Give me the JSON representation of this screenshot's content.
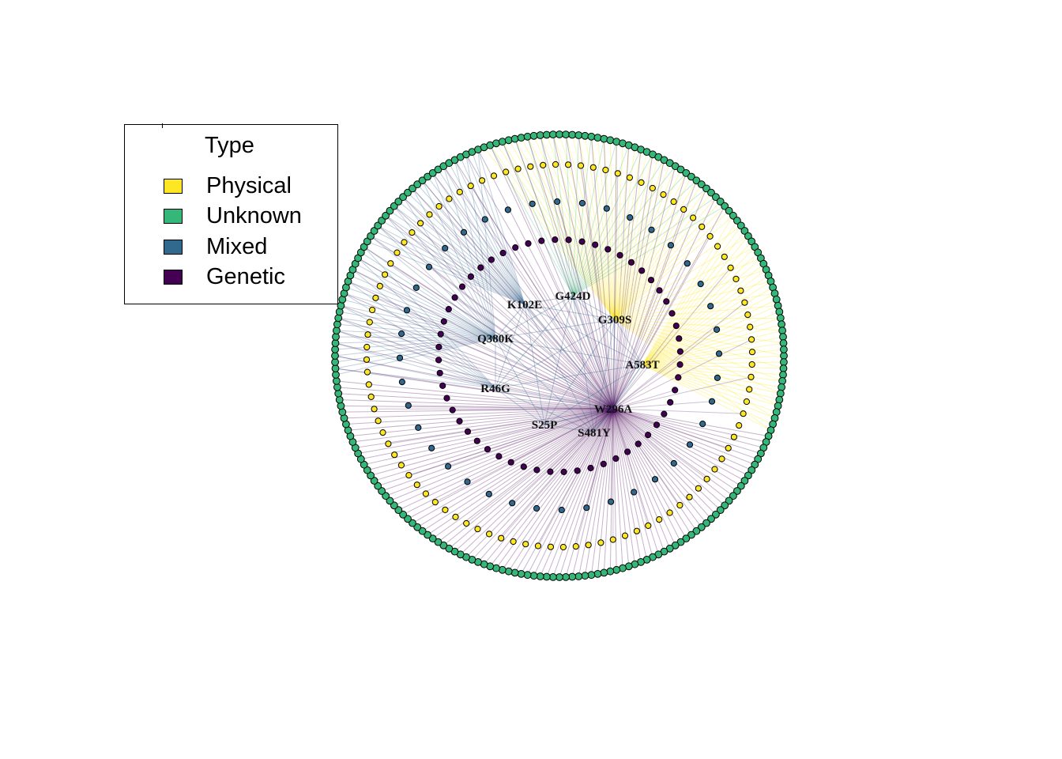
{
  "legend": {
    "title": "Type",
    "items": [
      {
        "label": "Physical",
        "color": "#FDE725"
      },
      {
        "label": "Unknown",
        "color": "#35B779"
      },
      {
        "label": "Mixed",
        "color": "#31688E"
      },
      {
        "label": "Genetic",
        "color": "#440154"
      }
    ]
  },
  "hubs": [
    {
      "label": "W296A",
      "type": "Genetic"
    },
    {
      "label": "S481Y",
      "type": "Genetic"
    },
    {
      "label": "S25P",
      "type": "Genetic"
    },
    {
      "label": "R46G",
      "type": "Mixed"
    },
    {
      "label": "Q380K",
      "type": "Mixed"
    },
    {
      "label": "K102E",
      "type": "Mixed"
    },
    {
      "label": "G424D",
      "type": "Unknown"
    },
    {
      "label": "G309S",
      "type": "Physical"
    },
    {
      "label": "A583T",
      "type": "Physical"
    }
  ],
  "rings": [
    {
      "name": "outer",
      "type": "Unknown",
      "count": 220
    },
    {
      "name": "physical-ring",
      "type": "Physical",
      "count": 96
    },
    {
      "name": "mixed-ring",
      "type": "Mixed",
      "count": 40
    },
    {
      "name": "genetic-ring",
      "type": "Genetic",
      "count": 56
    }
  ]
}
